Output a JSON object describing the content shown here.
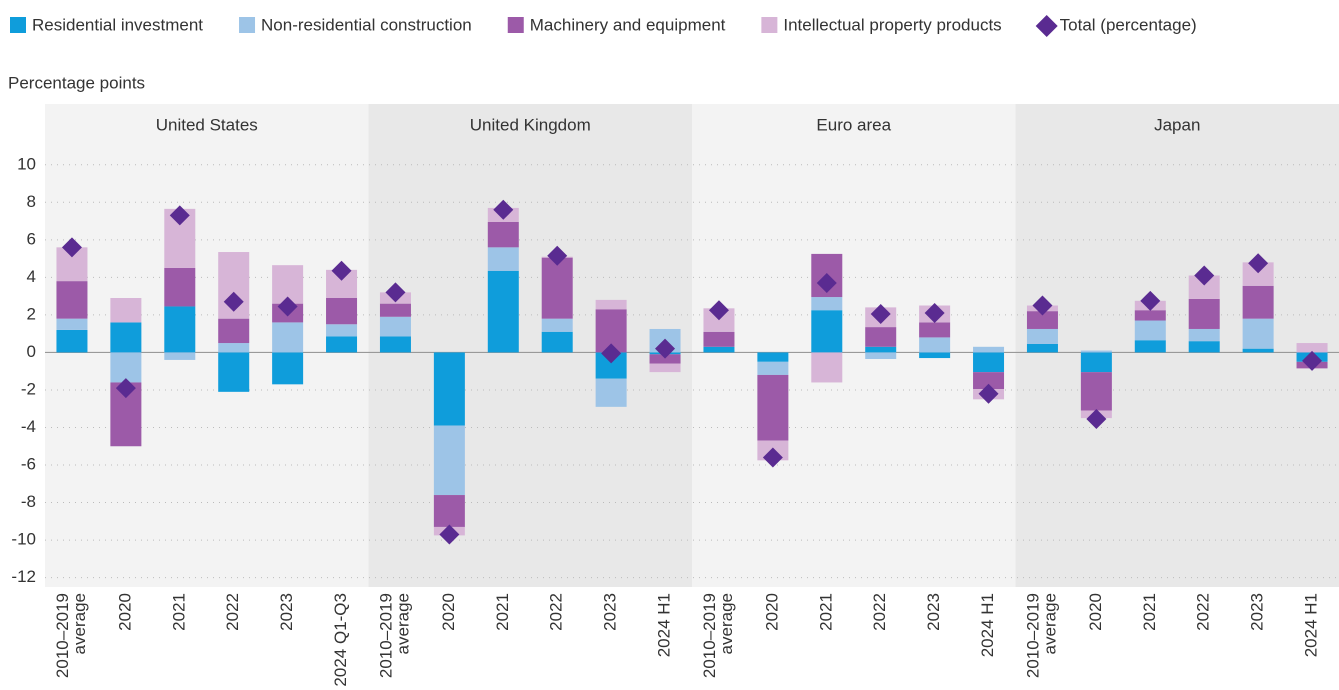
{
  "chart_data": {
    "type": "bar",
    "stacked": true,
    "ylabel": "Percentage points",
    "ylim": [
      -12.5,
      11
    ],
    "yticks": [
      -12,
      -10,
      -8,
      -6,
      -4,
      -2,
      0,
      2,
      4,
      6,
      8,
      10
    ],
    "grid": true,
    "legend": "top",
    "series": [
      {
        "name": "Residential investment",
        "color": "#0f9ddb"
      },
      {
        "name": "Non-residential construction",
        "color": "#9dc4e7"
      },
      {
        "name": "Machinery and equipment",
        "color": "#9c5aa8"
      },
      {
        "name": "Intellectual property products",
        "color": "#d7b5d7"
      }
    ],
    "total": {
      "name": "Total (percentage)",
      "color": "#5a2b91"
    },
    "panels": [
      {
        "title": "United States",
        "categories": [
          [
            "2010–2019",
            "average"
          ],
          "2020",
          "2021",
          "2022",
          "2023",
          "2024 Q1-Q3"
        ],
        "series": [
          {
            "values": [
              1.2,
              1.6,
              2.45,
              -2.1,
              -1.7,
              0.85
            ]
          },
          {
            "values": [
              0.6,
              -1.6,
              -0.4,
              0.5,
              1.6,
              0.65
            ]
          },
          {
            "values": [
              2.0,
              -3.4,
              2.05,
              1.3,
              1.0,
              1.4
            ]
          },
          {
            "values": [
              1.8,
              1.3,
              3.15,
              3.55,
              2.05,
              1.5
            ]
          }
        ],
        "total": [
          5.6,
          -1.9,
          7.3,
          2.7,
          2.45,
          4.35
        ]
      },
      {
        "title": "United Kingdom",
        "categories": [
          [
            "2010–2019",
            "average"
          ],
          "2020",
          "2021",
          "2022",
          "2023",
          "2024 H1"
        ],
        "series": [
          {
            "values": [
              0.85,
              -3.9,
              4.35,
              1.1,
              -1.4,
              -0.1
            ]
          },
          {
            "values": [
              1.05,
              -3.7,
              1.25,
              0.7,
              -1.5,
              1.25
            ]
          },
          {
            "values": [
              0.7,
              -1.7,
              1.35,
              3.25,
              2.3,
              -0.5
            ]
          },
          {
            "values": [
              0.6,
              -0.45,
              0.75,
              0.05,
              0.5,
              -0.45
            ]
          }
        ],
        "total": [
          3.2,
          -9.7,
          7.6,
          5.15,
          -0.05,
          0.2
        ]
      },
      {
        "title": "Euro area",
        "categories": [
          [
            "2010–2019",
            "average"
          ],
          "2020",
          "2021",
          "2022",
          "2023",
          "2024 H1"
        ],
        "series": [
          {
            "values": [
              0.3,
              -0.5,
              2.25,
              0.3,
              -0.3,
              -1.05
            ]
          },
          {
            "values": [
              0,
              -0.7,
              0.7,
              -0.35,
              0.8,
              0.3
            ]
          },
          {
            "values": [
              0.8,
              -3.5,
              2.3,
              1.05,
              0.8,
              -0.9
            ]
          },
          {
            "values": [
              1.25,
              -1.05,
              -1.6,
              1.05,
              0.9,
              -0.55
            ]
          }
        ],
        "total": [
          2.25,
          -5.6,
          3.7,
          2.05,
          2.1,
          -2.2
        ]
      },
      {
        "title": "Japan",
        "categories": [
          [
            "2010–2019",
            "average"
          ],
          "2020",
          "2021",
          "2022",
          "2023",
          "2024 H1"
        ],
        "series": [
          {
            "values": [
              0.45,
              -1.05,
              0.65,
              0.6,
              0.2,
              -0.5
            ]
          },
          {
            "values": [
              0.8,
              0.1,
              1.05,
              0.65,
              1.6,
              0
            ]
          },
          {
            "values": [
              0.95,
              -2.05,
              0.55,
              1.6,
              1.75,
              -0.35
            ]
          },
          {
            "values": [
              0.3,
              -0.4,
              0.5,
              1.25,
              1.25,
              0.5
            ]
          }
        ],
        "total": [
          2.5,
          -3.55,
          2.75,
          4.1,
          4.75,
          -0.45
        ]
      }
    ]
  }
}
